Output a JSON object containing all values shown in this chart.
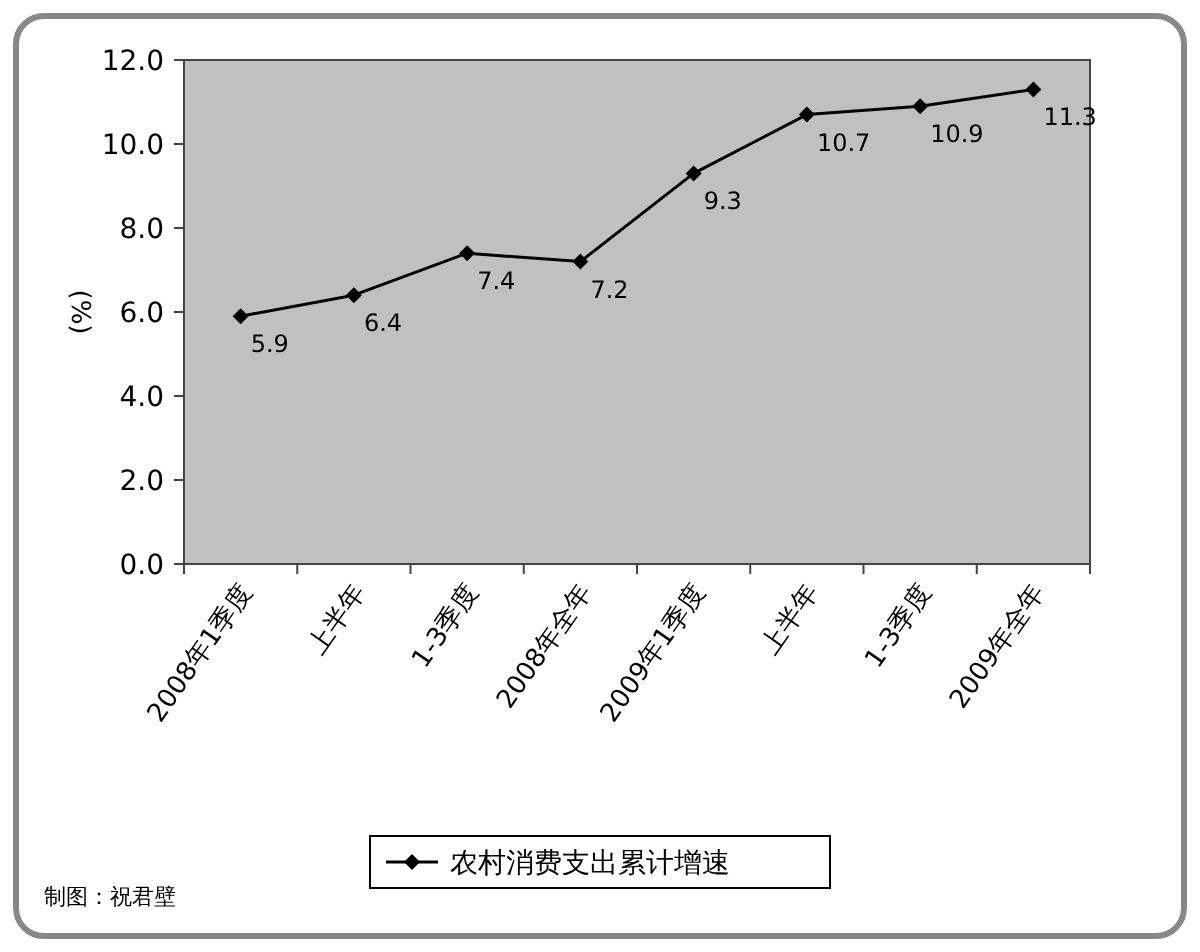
{
  "chart_data": {
    "type": "line",
    "ylabel": "(%)",
    "categories": [
      "2008年1季度",
      "上半年",
      "1-3季度",
      "2008年全年",
      "2009年1季度",
      "上半年",
      "1-3季度",
      "2009年全年"
    ],
    "series": [
      {
        "name": "农村消费支出累计增速",
        "color": "#000000",
        "values": [
          5.9,
          6.4,
          7.4,
          7.2,
          9.3,
          10.7,
          10.9,
          11.3
        ]
      }
    ],
    "ylim": [
      0,
      12
    ],
    "yticks": [
      {
        "value": 0,
        "label": "0.0"
      },
      {
        "value": 2,
        "label": "2.0"
      },
      {
        "value": 4,
        "label": "4.0"
      },
      {
        "value": 6,
        "label": "6.0"
      },
      {
        "value": 8,
        "label": "8.0"
      },
      {
        "value": 10,
        "label": "10.0"
      },
      {
        "value": 12,
        "label": "12.0"
      }
    ],
    "data_labels": true,
    "marker": "diamond",
    "legend": "bottom",
    "annotations": [
      "制图：祝君壁"
    ]
  }
}
